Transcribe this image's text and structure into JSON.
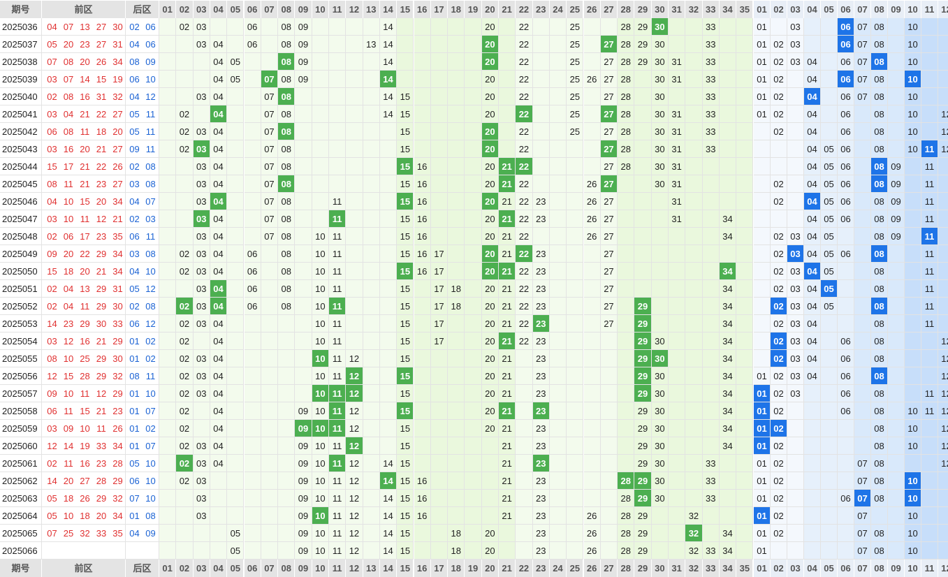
{
  "header": {
    "issue": "期号",
    "front": "前区",
    "back": "后区",
    "front_cols": [
      "01",
      "02",
      "03",
      "04",
      "05",
      "06",
      "07",
      "08",
      "09",
      "10",
      "11",
      "12",
      "13",
      "14",
      "15",
      "16",
      "17",
      "18",
      "19",
      "20",
      "21",
      "22",
      "23",
      "24",
      "25",
      "26",
      "27",
      "28",
      "29",
      "30",
      "31",
      "32",
      "33",
      "34",
      "35"
    ],
    "back_cols": [
      "01",
      "02",
      "03",
      "04",
      "05",
      "06",
      "07",
      "08",
      "09",
      "10",
      "11",
      "12"
    ]
  },
  "colors": {
    "front_hit": "#4caf50",
    "back_hit": "#1e74e8",
    "front_draw_text": "#e03030",
    "back_draw_text": "#1a62d4"
  },
  "rows": [
    {
      "issue": "2025036",
      "f": [
        "04",
        "07",
        "13",
        "27",
        "30"
      ],
      "b": [
        "02",
        "06"
      ],
      "front": [
        "02",
        "03",
        "06",
        "08",
        "09",
        "14",
        "20",
        "22",
        "25",
        "28",
        "29",
        "30",
        "33"
      ],
      "front_hits": [
        "30"
      ],
      "back": [
        "01",
        "03",
        "06",
        "07",
        "08",
        "10"
      ],
      "back_hits": [
        "06"
      ]
    },
    {
      "issue": "2025037",
      "f": [
        "05",
        "20",
        "23",
        "27",
        "31"
      ],
      "b": [
        "04",
        "06"
      ],
      "front": [
        "03",
        "04",
        "06",
        "08",
        "09",
        "13",
        "14",
        "20",
        "22",
        "25",
        "27",
        "28",
        "29",
        "30",
        "33"
      ],
      "front_hits": [
        "20",
        "27"
      ],
      "back": [
        "01",
        "02",
        "03",
        "06",
        "07",
        "08",
        "10"
      ],
      "back_hits": [
        "06"
      ]
    },
    {
      "issue": "2025038",
      "f": [
        "07",
        "08",
        "20",
        "26",
        "34"
      ],
      "b": [
        "08",
        "09"
      ],
      "front": [
        "04",
        "05",
        "08",
        "09",
        "14",
        "20",
        "22",
        "25",
        "27",
        "28",
        "29",
        "30",
        "31",
        "33"
      ],
      "front_hits": [
        "08",
        "20"
      ],
      "back": [
        "01",
        "02",
        "03",
        "04",
        "06",
        "07",
        "08",
        "10"
      ],
      "back_hits": [
        "08"
      ]
    },
    {
      "issue": "2025039",
      "f": [
        "03",
        "07",
        "14",
        "15",
        "19"
      ],
      "b": [
        "06",
        "10"
      ],
      "front": [
        "04",
        "05",
        "07",
        "08",
        "09",
        "14",
        "20",
        "22",
        "25",
        "26",
        "27",
        "28",
        "30",
        "31",
        "33"
      ],
      "front_hits": [
        "07",
        "14"
      ],
      "back": [
        "01",
        "02",
        "04",
        "06",
        "07",
        "08",
        "10"
      ],
      "back_hits": [
        "06",
        "10"
      ]
    },
    {
      "issue": "2025040",
      "f": [
        "02",
        "08",
        "16",
        "31",
        "32"
      ],
      "b": [
        "04",
        "12"
      ],
      "front": [
        "03",
        "04",
        "07",
        "08",
        "14",
        "15",
        "20",
        "22",
        "25",
        "27",
        "28",
        "30",
        "33"
      ],
      "front_hits": [
        "08"
      ],
      "back": [
        "01",
        "02",
        "04",
        "06",
        "07",
        "08",
        "10"
      ],
      "back_hits": [
        "04"
      ]
    },
    {
      "issue": "2025041",
      "f": [
        "03",
        "04",
        "21",
        "22",
        "27"
      ],
      "b": [
        "05",
        "11"
      ],
      "front": [
        "02",
        "04",
        "07",
        "08",
        "14",
        "15",
        "20",
        "22",
        "25",
        "27",
        "28",
        "30",
        "31",
        "33"
      ],
      "front_hits": [
        "04",
        "22",
        "27"
      ],
      "back": [
        "01",
        "02",
        "04",
        "06",
        "08",
        "10",
        "12"
      ],
      "back_hits": []
    },
    {
      "issue": "2025042",
      "f": [
        "06",
        "08",
        "11",
        "18",
        "20"
      ],
      "b": [
        "05",
        "11"
      ],
      "front": [
        "02",
        "03",
        "04",
        "07",
        "08",
        "15",
        "20",
        "22",
        "25",
        "27",
        "28",
        "30",
        "31",
        "33"
      ],
      "front_hits": [
        "08",
        "20"
      ],
      "back": [
        "02",
        "04",
        "06",
        "08",
        "10",
        "12"
      ],
      "back_hits": []
    },
    {
      "issue": "2025043",
      "f": [
        "03",
        "16",
        "20",
        "21",
        "27"
      ],
      "b": [
        "09",
        "11"
      ],
      "front": [
        "02",
        "03",
        "04",
        "07",
        "08",
        "15",
        "20",
        "22",
        "27",
        "28",
        "30",
        "31",
        "33"
      ],
      "front_hits": [
        "03",
        "20",
        "27"
      ],
      "back": [
        "04",
        "05",
        "06",
        "08",
        "10",
        "11",
        "12"
      ],
      "back_hits": [
        "11"
      ]
    },
    {
      "issue": "2025044",
      "f": [
        "15",
        "17",
        "21",
        "22",
        "26"
      ],
      "b": [
        "02",
        "08"
      ],
      "front": [
        "03",
        "04",
        "07",
        "08",
        "15",
        "16",
        "20",
        "21",
        "22",
        "27",
        "28",
        "30",
        "31"
      ],
      "front_hits": [
        "15",
        "21",
        "22"
      ],
      "back": [
        "04",
        "05",
        "06",
        "08",
        "09",
        "11"
      ],
      "back_hits": [
        "08"
      ]
    },
    {
      "issue": "2025045",
      "f": [
        "08",
        "11",
        "21",
        "23",
        "27"
      ],
      "b": [
        "03",
        "08"
      ],
      "front": [
        "03",
        "04",
        "07",
        "08",
        "15",
        "16",
        "20",
        "21",
        "22",
        "26",
        "27",
        "30",
        "31"
      ],
      "front_hits": [
        "08",
        "21",
        "27"
      ],
      "back": [
        "02",
        "04",
        "05",
        "06",
        "08",
        "09",
        "11"
      ],
      "back_hits": [
        "08"
      ]
    },
    {
      "issue": "2025046",
      "f": [
        "04",
        "10",
        "15",
        "20",
        "34"
      ],
      "b": [
        "04",
        "07"
      ],
      "front": [
        "03",
        "04",
        "07",
        "08",
        "11",
        "15",
        "16",
        "20",
        "21",
        "22",
        "23",
        "26",
        "27",
        "31"
      ],
      "front_hits": [
        "04",
        "15",
        "20"
      ],
      "back": [
        "02",
        "04",
        "05",
        "06",
        "08",
        "09",
        "11"
      ],
      "back_hits": [
        "04"
      ]
    },
    {
      "issue": "2025047",
      "f": [
        "03",
        "10",
        "11",
        "12",
        "21"
      ],
      "b": [
        "02",
        "03"
      ],
      "front": [
        "03",
        "04",
        "07",
        "08",
        "11",
        "15",
        "16",
        "20",
        "21",
        "22",
        "23",
        "26",
        "27",
        "31",
        "34"
      ],
      "front_hits": [
        "03",
        "11",
        "21"
      ],
      "back": [
        "04",
        "05",
        "06",
        "08",
        "09",
        "11"
      ],
      "back_hits": []
    },
    {
      "issue": "2025048",
      "f": [
        "02",
        "06",
        "17",
        "23",
        "35"
      ],
      "b": [
        "06",
        "11"
      ],
      "front": [
        "03",
        "04",
        "07",
        "08",
        "10",
        "11",
        "15",
        "16",
        "20",
        "21",
        "22",
        "26",
        "27",
        "34"
      ],
      "front_hits": [],
      "back": [
        "02",
        "03",
        "04",
        "05",
        "08",
        "09",
        "11"
      ],
      "back_hits": [
        "11"
      ]
    },
    {
      "issue": "2025049",
      "f": [
        "09",
        "20",
        "22",
        "29",
        "34"
      ],
      "b": [
        "03",
        "08"
      ],
      "front": [
        "02",
        "03",
        "04",
        "06",
        "08",
        "10",
        "11",
        "15",
        "16",
        "17",
        "20",
        "21",
        "22",
        "23",
        "27"
      ],
      "front_hits": [
        "20",
        "22"
      ],
      "back": [
        "02",
        "03",
        "04",
        "05",
        "06",
        "08",
        "11"
      ],
      "back_hits": [
        "03",
        "08"
      ]
    },
    {
      "issue": "2025050",
      "f": [
        "15",
        "18",
        "20",
        "21",
        "34"
      ],
      "b": [
        "04",
        "10"
      ],
      "front": [
        "02",
        "03",
        "04",
        "06",
        "08",
        "10",
        "11",
        "15",
        "16",
        "17",
        "20",
        "21",
        "22",
        "23",
        "27",
        "34"
      ],
      "front_hits": [
        "15",
        "20",
        "21",
        "34"
      ],
      "back": [
        "02",
        "03",
        "04",
        "05",
        "08",
        "11"
      ],
      "back_hits": [
        "04"
      ]
    },
    {
      "issue": "2025051",
      "f": [
        "02",
        "04",
        "13",
        "29",
        "31"
      ],
      "b": [
        "05",
        "12"
      ],
      "front": [
        "03",
        "04",
        "06",
        "08",
        "10",
        "11",
        "15",
        "17",
        "18",
        "20",
        "21",
        "22",
        "23",
        "27",
        "34"
      ],
      "front_hits": [
        "04"
      ],
      "back": [
        "02",
        "03",
        "04",
        "05",
        "08",
        "11"
      ],
      "back_hits": [
        "05"
      ]
    },
    {
      "issue": "2025052",
      "f": [
        "02",
        "04",
        "11",
        "29",
        "30"
      ],
      "b": [
        "02",
        "08"
      ],
      "front": [
        "02",
        "03",
        "04",
        "06",
        "08",
        "10",
        "11",
        "15",
        "17",
        "18",
        "20",
        "21",
        "22",
        "23",
        "27",
        "29",
        "34"
      ],
      "front_hits": [
        "02",
        "04",
        "11",
        "29"
      ],
      "back": [
        "02",
        "03",
        "04",
        "05",
        "08",
        "11"
      ],
      "back_hits": [
        "02",
        "08"
      ]
    },
    {
      "issue": "2025053",
      "f": [
        "14",
        "23",
        "29",
        "30",
        "33"
      ],
      "b": [
        "06",
        "12"
      ],
      "front": [
        "02",
        "03",
        "04",
        "10",
        "11",
        "15",
        "17",
        "20",
        "21",
        "22",
        "23",
        "27",
        "29",
        "34"
      ],
      "front_hits": [
        "23",
        "29"
      ],
      "back": [
        "02",
        "03",
        "04",
        "08",
        "11"
      ],
      "back_hits": []
    },
    {
      "issue": "2025054",
      "f": [
        "03",
        "12",
        "16",
        "21",
        "29"
      ],
      "b": [
        "01",
        "02"
      ],
      "front": [
        "02",
        "04",
        "10",
        "11",
        "15",
        "17",
        "20",
        "21",
        "22",
        "23",
        "29",
        "30",
        "34"
      ],
      "front_hits": [
        "21",
        "29"
      ],
      "back": [
        "02",
        "03",
        "04",
        "06",
        "08",
        "12"
      ],
      "back_hits": [
        "02"
      ]
    },
    {
      "issue": "2025055",
      "f": [
        "08",
        "10",
        "25",
        "29",
        "30"
      ],
      "b": [
        "01",
        "02"
      ],
      "front": [
        "02",
        "03",
        "04",
        "10",
        "11",
        "12",
        "15",
        "20",
        "21",
        "23",
        "29",
        "30",
        "34"
      ],
      "front_hits": [
        "10",
        "29",
        "30"
      ],
      "back": [
        "02",
        "03",
        "04",
        "06",
        "08",
        "12"
      ],
      "back_hits": [
        "02"
      ]
    },
    {
      "issue": "2025056",
      "f": [
        "12",
        "15",
        "28",
        "29",
        "32"
      ],
      "b": [
        "08",
        "11"
      ],
      "front": [
        "02",
        "03",
        "04",
        "10",
        "11",
        "12",
        "15",
        "20",
        "21",
        "23",
        "29",
        "30",
        "34"
      ],
      "front_hits": [
        "12",
        "15",
        "29"
      ],
      "back": [
        "01",
        "02",
        "03",
        "04",
        "06",
        "08",
        "12"
      ],
      "back_hits": [
        "08"
      ]
    },
    {
      "issue": "2025057",
      "f": [
        "09",
        "10",
        "11",
        "12",
        "29"
      ],
      "b": [
        "01",
        "10"
      ],
      "front": [
        "02",
        "03",
        "04",
        "10",
        "11",
        "12",
        "15",
        "20",
        "21",
        "23",
        "29",
        "30",
        "34"
      ],
      "front_hits": [
        "10",
        "11",
        "12",
        "29"
      ],
      "back": [
        "01",
        "02",
        "03",
        "06",
        "08",
        "11",
        "12"
      ],
      "back_hits": [
        "01"
      ]
    },
    {
      "issue": "2025058",
      "f": [
        "06",
        "11",
        "15",
        "21",
        "23"
      ],
      "b": [
        "01",
        "07"
      ],
      "front": [
        "02",
        "04",
        "09",
        "10",
        "11",
        "12",
        "15",
        "20",
        "21",
        "23",
        "29",
        "30",
        "34"
      ],
      "front_hits": [
        "11",
        "15",
        "21",
        "23"
      ],
      "back": [
        "01",
        "02",
        "06",
        "08",
        "10",
        "11",
        "12"
      ],
      "back_hits": [
        "01"
      ]
    },
    {
      "issue": "2025059",
      "f": [
        "03",
        "09",
        "10",
        "11",
        "26"
      ],
      "b": [
        "01",
        "02"
      ],
      "front": [
        "02",
        "04",
        "09",
        "10",
        "11",
        "12",
        "15",
        "20",
        "21",
        "23",
        "29",
        "30",
        "34"
      ],
      "front_hits": [
        "09",
        "10",
        "11"
      ],
      "back": [
        "01",
        "02",
        "08",
        "10",
        "12"
      ],
      "back_hits": [
        "01",
        "02"
      ]
    },
    {
      "issue": "2025060",
      "f": [
        "12",
        "14",
        "19",
        "33",
        "34"
      ],
      "b": [
        "01",
        "07"
      ],
      "front": [
        "02",
        "03",
        "04",
        "09",
        "10",
        "11",
        "12",
        "15",
        "21",
        "23",
        "29",
        "30",
        "34"
      ],
      "front_hits": [
        "12"
      ],
      "back": [
        "01",
        "02",
        "08",
        "10",
        "12"
      ],
      "back_hits": [
        "01"
      ]
    },
    {
      "issue": "2025061",
      "f": [
        "02",
        "11",
        "16",
        "23",
        "28"
      ],
      "b": [
        "05",
        "10"
      ],
      "front": [
        "02",
        "03",
        "04",
        "09",
        "10",
        "11",
        "12",
        "14",
        "15",
        "21",
        "23",
        "29",
        "30",
        "33"
      ],
      "front_hits": [
        "02",
        "11",
        "23"
      ],
      "back": [
        "01",
        "02",
        "07",
        "08",
        "12"
      ],
      "back_hits": []
    },
    {
      "issue": "2025062",
      "f": [
        "14",
        "20",
        "27",
        "28",
        "29"
      ],
      "b": [
        "06",
        "10"
      ],
      "front": [
        "02",
        "03",
        "09",
        "10",
        "11",
        "12",
        "14",
        "15",
        "16",
        "21",
        "23",
        "28",
        "29",
        "30",
        "33"
      ],
      "front_hits": [
        "14",
        "28",
        "29"
      ],
      "back": [
        "01",
        "02",
        "07",
        "08",
        "10"
      ],
      "back_hits": [
        "10"
      ]
    },
    {
      "issue": "2025063",
      "f": [
        "05",
        "18",
        "26",
        "29",
        "32"
      ],
      "b": [
        "07",
        "10"
      ],
      "front": [
        "03",
        "09",
        "10",
        "11",
        "12",
        "14",
        "15",
        "16",
        "21",
        "23",
        "28",
        "29",
        "30",
        "33"
      ],
      "front_hits": [
        "29"
      ],
      "back": [
        "01",
        "02",
        "06",
        "07",
        "08",
        "10"
      ],
      "back_hits": [
        "07",
        "10"
      ]
    },
    {
      "issue": "2025064",
      "f": [
        "05",
        "10",
        "18",
        "20",
        "34"
      ],
      "b": [
        "01",
        "08"
      ],
      "front": [
        "03",
        "09",
        "10",
        "11",
        "12",
        "14",
        "15",
        "16",
        "21",
        "23",
        "26",
        "28",
        "29",
        "32"
      ],
      "front_hits": [
        "10"
      ],
      "back": [
        "01",
        "02",
        "07",
        "10"
      ],
      "back_hits": [
        "01"
      ]
    },
    {
      "issue": "2025065",
      "f": [
        "07",
        "25",
        "32",
        "33",
        "35"
      ],
      "b": [
        "04",
        "09"
      ],
      "front": [
        "05",
        "09",
        "10",
        "11",
        "12",
        "14",
        "15",
        "18",
        "20",
        "23",
        "26",
        "28",
        "29",
        "32",
        "34"
      ],
      "front_hits": [
        "32"
      ],
      "back": [
        "01",
        "02",
        "07",
        "08",
        "10"
      ],
      "back_hits": []
    },
    {
      "issue": "2025066",
      "f": [],
      "b": [],
      "front": [
        "05",
        "09",
        "10",
        "11",
        "12",
        "14",
        "15",
        "18",
        "20",
        "23",
        "26",
        "28",
        "29",
        "32",
        "33",
        "34"
      ],
      "front_hits": [],
      "back": [
        "01",
        "07",
        "08",
        "10"
      ],
      "back_hits": []
    }
  ]
}
